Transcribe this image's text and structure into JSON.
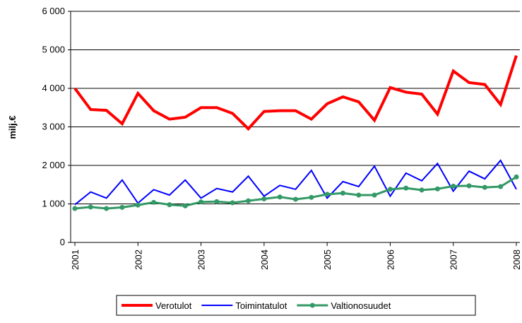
{
  "chart_data": {
    "type": "line",
    "y_label": "milj.€",
    "x": [
      2001,
      2001.25,
      2001.5,
      2001.75,
      2002,
      2002.25,
      2002.5,
      2002.75,
      2003,
      2003.25,
      2003.5,
      2003.75,
      2004,
      2004.25,
      2004.5,
      2004.75,
      2005,
      2005.25,
      2005.5,
      2005.75,
      2006,
      2006.25,
      2006.5,
      2006.75,
      2007,
      2007.25,
      2007.5,
      2007.75,
      2008
    ],
    "xlim": [
      2001,
      2008
    ],
    "xticks": [
      2001,
      2002,
      2003,
      2004,
      2005,
      2006,
      2007,
      2008
    ],
    "ylim": [
      0,
      6000
    ],
    "yticks": [
      0,
      {
        "value": 1000,
        "label": "1 000"
      },
      {
        "value": 2000,
        "label": "2 000"
      },
      {
        "value": 3000,
        "label": "3 000"
      },
      {
        "value": 4000,
        "label": "4 000"
      },
      {
        "value": 5000,
        "label": "5 000"
      },
      {
        "value": 6000,
        "label": "6 000"
      }
    ],
    "grid": true,
    "legend": "bottom",
    "series": [
      {
        "name": "Verotulot",
        "color": "#ff0000",
        "width": 4,
        "markers": false,
        "values": [
          4000,
          3450,
          3430,
          3080,
          3870,
          3420,
          3200,
          3250,
          3500,
          3500,
          3350,
          2950,
          3400,
          3420,
          3420,
          3200,
          3600,
          3780,
          3650,
          3170,
          4020,
          3900,
          3850,
          3330,
          4450,
          4150,
          4100,
          3580,
          4850
        ]
      },
      {
        "name": "Toimintatulot",
        "color": "#0000ff",
        "width": 2,
        "markers": false,
        "values": [
          980,
          1310,
          1150,
          1620,
          1020,
          1370,
          1230,
          1620,
          1150,
          1400,
          1310,
          1720,
          1200,
          1480,
          1380,
          1870,
          1150,
          1580,
          1450,
          1980,
          1200,
          1800,
          1600,
          2050,
          1330,
          1850,
          1650,
          2130,
          1380
        ]
      },
      {
        "name": "Valtionosuudet",
        "color": "#339966",
        "width": 3,
        "markers": true,
        "values": [
          880,
          920,
          880,
          910,
          970,
          1040,
          980,
          950,
          1050,
          1060,
          1030,
          1080,
          1130,
          1180,
          1120,
          1170,
          1250,
          1280,
          1230,
          1230,
          1380,
          1410,
          1360,
          1390,
          1460,
          1470,
          1430,
          1450,
          1700
        ]
      }
    ]
  }
}
